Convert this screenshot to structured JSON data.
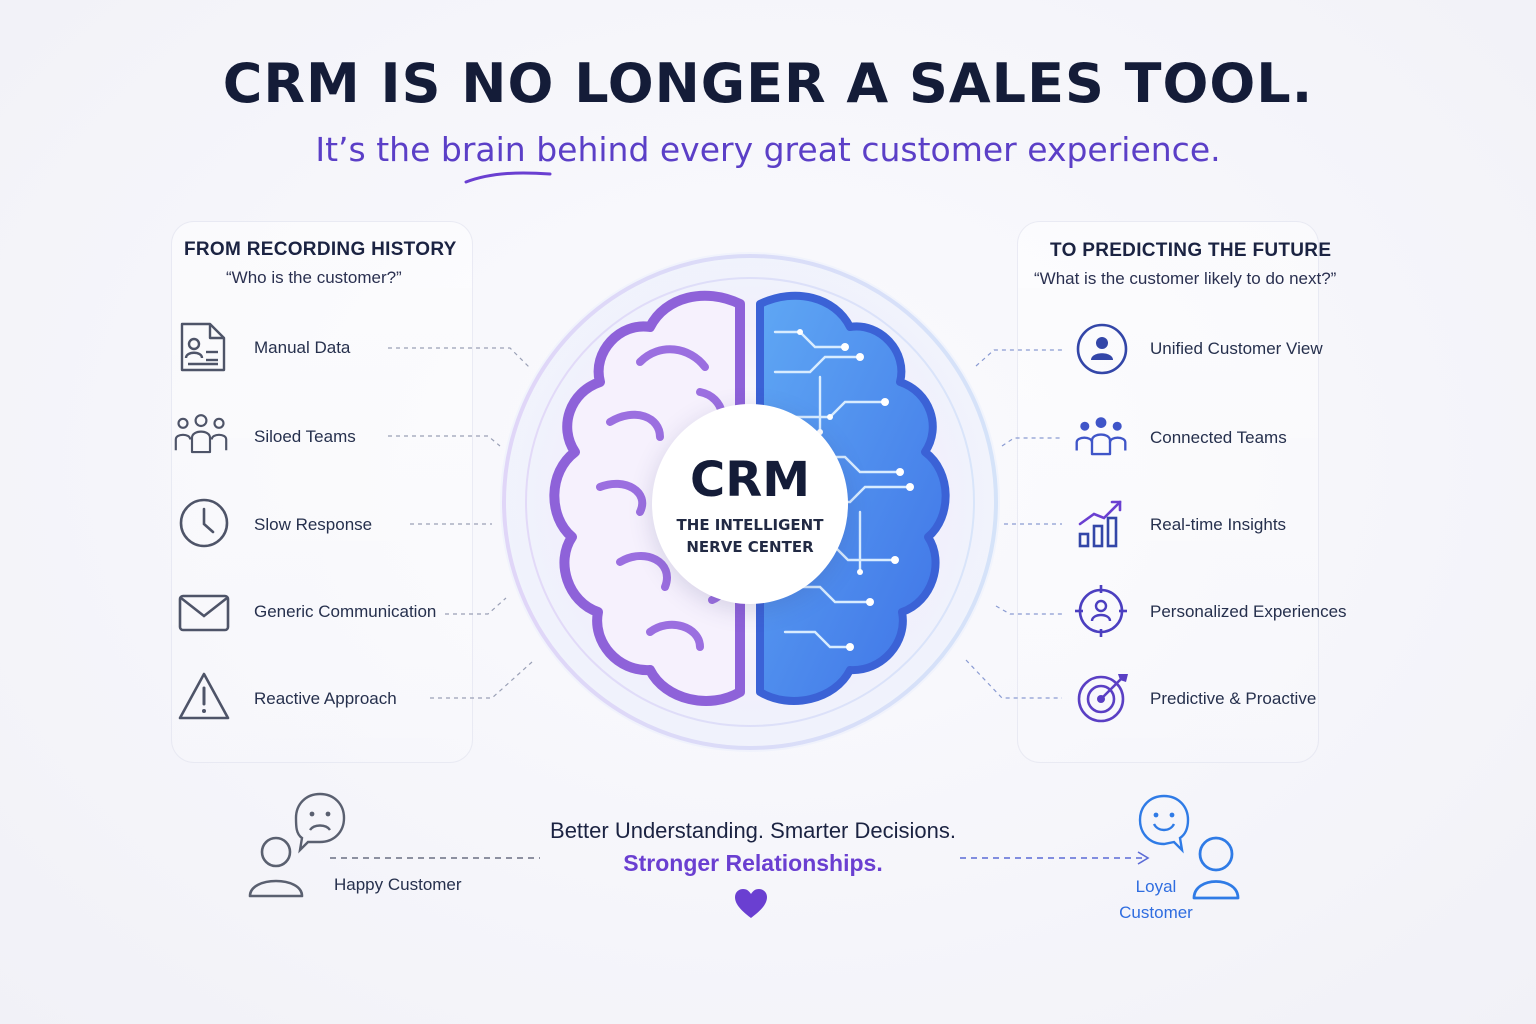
{
  "header": {
    "title": "CRM IS NO LONGER A SALES TOOL.",
    "subtitle_before": "It’s the ",
    "subtitle_highlight": "brain",
    "subtitle_after": " behind every great customer experience."
  },
  "left_panel": {
    "title": "FROM RECORDING HISTORY",
    "quote": "“Who is the customer?”",
    "items": [
      {
        "label": "Manual Data",
        "icon": "document-user-icon"
      },
      {
        "label": "Siloed Teams",
        "icon": "team-outline-icon"
      },
      {
        "label": "Slow Response",
        "icon": "clock-icon"
      },
      {
        "label": "Generic Communication",
        "icon": "envelope-icon"
      },
      {
        "label": "Reactive Approach",
        "icon": "warning-triangle-icon"
      }
    ]
  },
  "right_panel": {
    "title": "TO PREDICTING THE FUTURE",
    "quote": "“What is the customer likely to do next?”",
    "items": [
      {
        "label": "Unified Customer View",
        "icon": "user-circle-icon"
      },
      {
        "label": "Connected Teams",
        "icon": "team-connected-icon"
      },
      {
        "label": "Real-time Insights",
        "icon": "bar-chart-trend-icon"
      },
      {
        "label": "Personalized Experiences",
        "icon": "target-user-icon"
      },
      {
        "label": "Predictive & Proactive",
        "icon": "bullseye-arrow-icon"
      }
    ]
  },
  "center": {
    "title": "CRM",
    "subtitle_line1": "THE INTELLIGENT",
    "subtitle_line2": "NERVE CENTER"
  },
  "footer": {
    "line1": "Better Understanding. Smarter Decisions.",
    "line2": "Stronger Relationships.",
    "left_customer": "Happy Customer",
    "right_customer_line1": "Loyal",
    "right_customer_line2": "Customer"
  },
  "colors": {
    "navy": "#141c38",
    "purple": "#6a3fd1",
    "blue": "#2f6de0",
    "gray_icon": "#5a6070"
  }
}
